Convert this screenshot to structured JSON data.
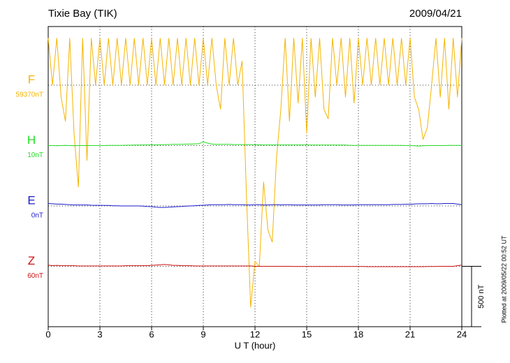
{
  "chart_data": {
    "type": "line",
    "title": "Tixie Bay (TIK)",
    "date": "2009/04/21",
    "x_label": "U T (hour)",
    "footnote": "Plotted at 2009/05/22 00:52 UT",
    "xlim": [
      0,
      24
    ],
    "xticks": [
      0,
      3,
      6,
      9,
      12,
      15,
      18,
      21,
      24
    ],
    "grid": true,
    "scale_bar": {
      "value": 500,
      "label": "500 nT"
    },
    "x": [
      0,
      0.25,
      0.5,
      0.75,
      1,
      1.25,
      1.5,
      1.75,
      2,
      2.25,
      2.5,
      2.75,
      3,
      3.25,
      3.5,
      3.75,
      4,
      4.25,
      4.5,
      4.75,
      5,
      5.25,
      5.5,
      5.75,
      6,
      6.25,
      6.5,
      6.75,
      7,
      7.25,
      7.5,
      7.75,
      8,
      8.25,
      8.5,
      8.75,
      9,
      9.25,
      9.5,
      9.75,
      10,
      10.25,
      10.5,
      10.75,
      11,
      11.25,
      11.5,
      11.75,
      12,
      12.25,
      12.5,
      12.75,
      13,
      13.25,
      13.5,
      13.75,
      14,
      14.25,
      14.5,
      14.75,
      15,
      15.25,
      15.5,
      15.75,
      16,
      16.25,
      16.5,
      16.75,
      17,
      17.25,
      17.5,
      17.75,
      18,
      18.25,
      18.5,
      18.75,
      19,
      19.25,
      19.5,
      19.75,
      20,
      20.25,
      20.5,
      20.75,
      21,
      21.25,
      21.5,
      21.75,
      22,
      22.25,
      22.5,
      22.75,
      23,
      23.25,
      23.5,
      23.75,
      24
    ],
    "series": [
      {
        "name": "F",
        "baseline_label": "59370nT",
        "color": "#f5b400",
        "values": [
          390,
          0,
          390,
          -100,
          -300,
          390,
          -400,
          -845,
          390,
          -625,
          390,
          0,
          390,
          0,
          390,
          0,
          390,
          0,
          390,
          0,
          390,
          0,
          390,
          0,
          390,
          0,
          390,
          0,
          390,
          0,
          390,
          0,
          390,
          0,
          390,
          0,
          390,
          0,
          390,
          0,
          -200,
          390,
          0,
          390,
          0,
          200,
          -900,
          -1840,
          -1460,
          -1500,
          -800,
          -1200,
          -1300,
          -600,
          -200,
          390,
          -300,
          390,
          -150,
          390,
          -400,
          390,
          -100,
          390,
          -200,
          -280,
          390,
          0,
          390,
          -100,
          390,
          -150,
          390,
          0,
          390,
          0,
          390,
          0,
          390,
          0,
          390,
          0,
          390,
          0,
          390,
          -100,
          -200,
          -450,
          -350,
          0,
          390,
          -100,
          390,
          -200,
          390,
          -100,
          390
        ]
      },
      {
        "name": "H",
        "baseline_label": "10nT",
        "color": "#22dd22",
        "values": [
          0,
          0,
          -2,
          0,
          2,
          0,
          -2,
          0,
          0,
          0,
          0,
          0,
          0,
          0,
          2,
          2,
          2,
          2,
          3,
          3,
          4,
          4,
          5,
          5,
          5,
          6,
          6,
          8,
          8,
          10,
          10,
          10,
          12,
          12,
          14,
          15,
          30,
          20,
          12,
          10,
          10,
          10,
          10,
          8,
          8,
          8,
          8,
          8,
          6,
          6,
          5,
          5,
          5,
          5,
          5,
          5,
          5,
          5,
          5,
          5,
          5,
          4,
          4,
          4,
          4,
          4,
          4,
          4,
          4,
          4,
          2,
          2,
          2,
          2,
          2,
          2,
          2,
          2,
          2,
          2,
          2,
          2,
          2,
          0,
          0,
          -2,
          -4,
          -2,
          0,
          0,
          0,
          0,
          0,
          2,
          2,
          2,
          2
        ]
      },
      {
        "name": "E",
        "baseline_label": "0nT",
        "color": "#1a1acc",
        "values": [
          20,
          18,
          15,
          15,
          12,
          10,
          8,
          8,
          8,
          8,
          6,
          5,
          5,
          4,
          4,
          2,
          2,
          0,
          0,
          0,
          0,
          0,
          -2,
          -4,
          -6,
          -10,
          -12,
          -12,
          -10,
          -8,
          -6,
          -4,
          -2,
          0,
          2,
          4,
          6,
          8,
          10,
          10,
          10,
          10,
          12,
          10,
          10,
          10,
          8,
          8,
          10,
          10,
          8,
          8,
          10,
          10,
          8,
          10,
          10,
          8,
          8,
          8,
          8,
          8,
          8,
          8,
          10,
          10,
          10,
          10,
          8,
          8,
          8,
          8,
          10,
          10,
          10,
          10,
          10,
          10,
          10,
          10,
          12,
          12,
          12,
          14,
          14,
          16,
          18,
          18,
          18,
          20,
          18,
          18,
          20,
          20,
          20,
          15,
          10
        ]
      },
      {
        "name": "Z",
        "baseline_label": "60nT",
        "color": "#cc1111",
        "values": [
          10,
          5,
          8,
          5,
          5,
          5,
          5,
          3,
          3,
          3,
          3,
          3,
          3,
          3,
          3,
          3,
          3,
          3,
          5,
          5,
          5,
          5,
          5,
          5,
          8,
          10,
          12,
          15,
          12,
          8,
          8,
          5,
          5,
          5,
          3,
          3,
          3,
          3,
          3,
          3,
          3,
          3,
          3,
          3,
          3,
          3,
          3,
          3,
          0,
          0,
          0,
          0,
          0,
          0,
          0,
          0,
          0,
          -2,
          -2,
          -2,
          -2,
          -2,
          -2,
          -2,
          -2,
          -2,
          -2,
          -2,
          -2,
          -2,
          -2,
          -2,
          -2,
          -2,
          -3,
          -3,
          -3,
          -3,
          -3,
          -3,
          -3,
          -3,
          -3,
          -3,
          -3,
          -3,
          -3,
          -3,
          -2,
          -2,
          -2,
          0,
          0,
          0,
          0,
          5,
          10
        ]
      }
    ]
  }
}
